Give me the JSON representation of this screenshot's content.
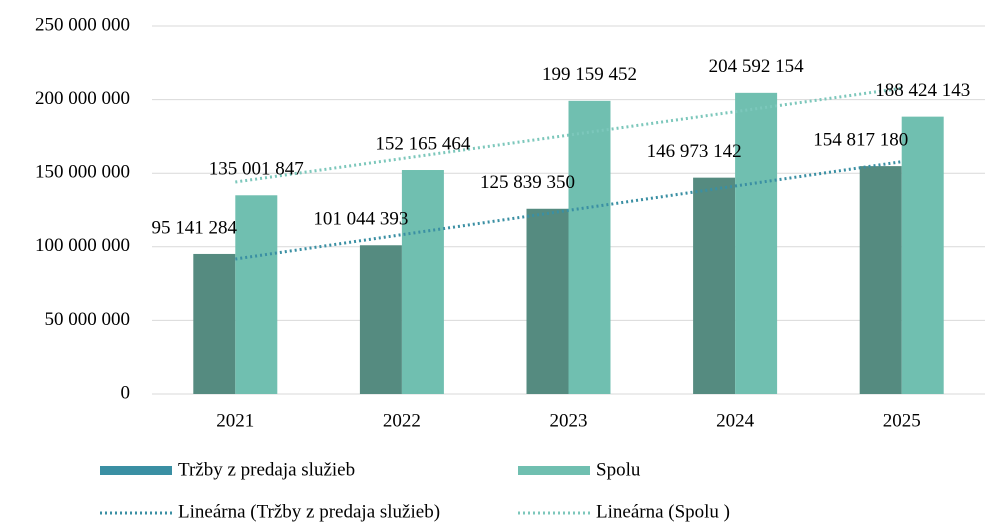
{
  "chart_data": {
    "type": "bar",
    "categories": [
      "2021",
      "2022",
      "2023",
      "2024",
      "2025"
    ],
    "series": [
      {
        "name": "Tržby z predaja služieb",
        "color": "#558b80",
        "values": [
          95141284,
          101044393,
          125839350,
          146973142,
          154817180
        ],
        "value_labels": [
          "95 141 284",
          "101 044 393",
          "125 839 350",
          "146 973 142",
          "154 817 180"
        ],
        "trendline": {
          "name": "Lineárna (Tržby z predaja služieb)",
          "color": "#3a8fa3",
          "type": "linear"
        }
      },
      {
        "name": "Spolu",
        "color": "#70bfb0",
        "values": [
          135001847,
          152165464,
          199159452,
          204592154,
          188424143
        ],
        "value_labels": [
          "135 001 847",
          "152 165 464",
          "199 159 452",
          "204 592 154",
          "188 424 143"
        ],
        "trendline": {
          "name": "Lineárna (Spolu )",
          "color": "#7cc7bb",
          "type": "linear"
        }
      }
    ],
    "ylim": [
      0,
      250000000
    ],
    "yticks": [
      0,
      {
        "value": 50000000,
        "label": "50 000 000"
      },
      {
        "value": 100000000,
        "label": "100 000 000"
      },
      {
        "value": 150000000,
        "label": "150 000 000"
      },
      {
        "value": 200000000,
        "label": "200 000 000"
      },
      {
        "value": 250000000,
        "label": "250 000 000"
      }
    ],
    "grid": true,
    "legend": "bottom"
  }
}
